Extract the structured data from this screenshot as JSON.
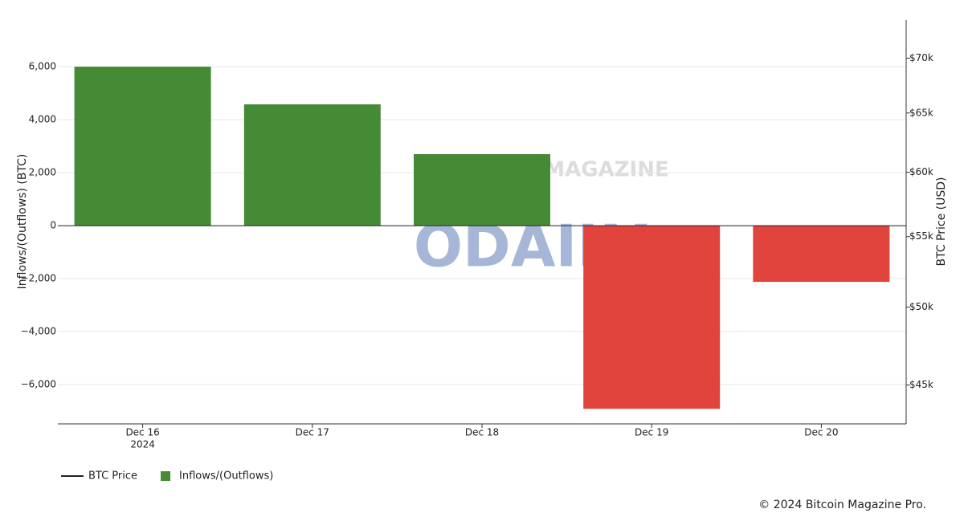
{
  "chart_data": {
    "type": "bar",
    "categories": [
      "Dec 16",
      "Dec 17",
      "Dec 18",
      "Dec 19",
      "Dec 20"
    ],
    "category_year": "2024",
    "series": [
      {
        "name": "BTC Price",
        "color": "#222222",
        "axis": "y2",
        "values": [
          null,
          null,
          null,
          null,
          null
        ]
      },
      {
        "name": "Inflows/(Outflows)",
        "color": "#458a34",
        "negative_color": "#e0443c",
        "values": [
          6000,
          4580,
          2700,
          -6910,
          -2120
        ]
      }
    ],
    "ylabel": "Inflows/(Outflows) (BTC)",
    "y2label": "BTC Price (USD)",
    "ylim": [
      -7480,
      7760
    ],
    "yticks": [
      {
        "value": -6000,
        "label": "−6,000"
      },
      {
        "value": -4000,
        "label": "−4,000"
      },
      {
        "value": -2000,
        "label": "−2,000"
      },
      0,
      {
        "value": 2000,
        "label": "2,000"
      },
      {
        "value": 4000,
        "label": "4,000"
      },
      {
        "value": 6000,
        "label": "6,000"
      }
    ],
    "y2lim": [
      42700,
      73700
    ],
    "y2log": true,
    "y2ticks": [
      {
        "value": 45000,
        "label": "$45k"
      },
      {
        "value": 50000,
        "label": "$50k"
      },
      {
        "value": 55000,
        "label": "$55k"
      },
      {
        "value": 60000,
        "label": "$60k"
      },
      {
        "value": 65000,
        "label": "$65k"
      },
      {
        "value": 70000,
        "label": "$70k"
      }
    ],
    "grid": true,
    "legend": "bottom-left",
    "watermark": "ODAILY",
    "watermark_brand": "MAGAZINE",
    "credit": "© 2024 Bitcoin Magazine Pro."
  }
}
